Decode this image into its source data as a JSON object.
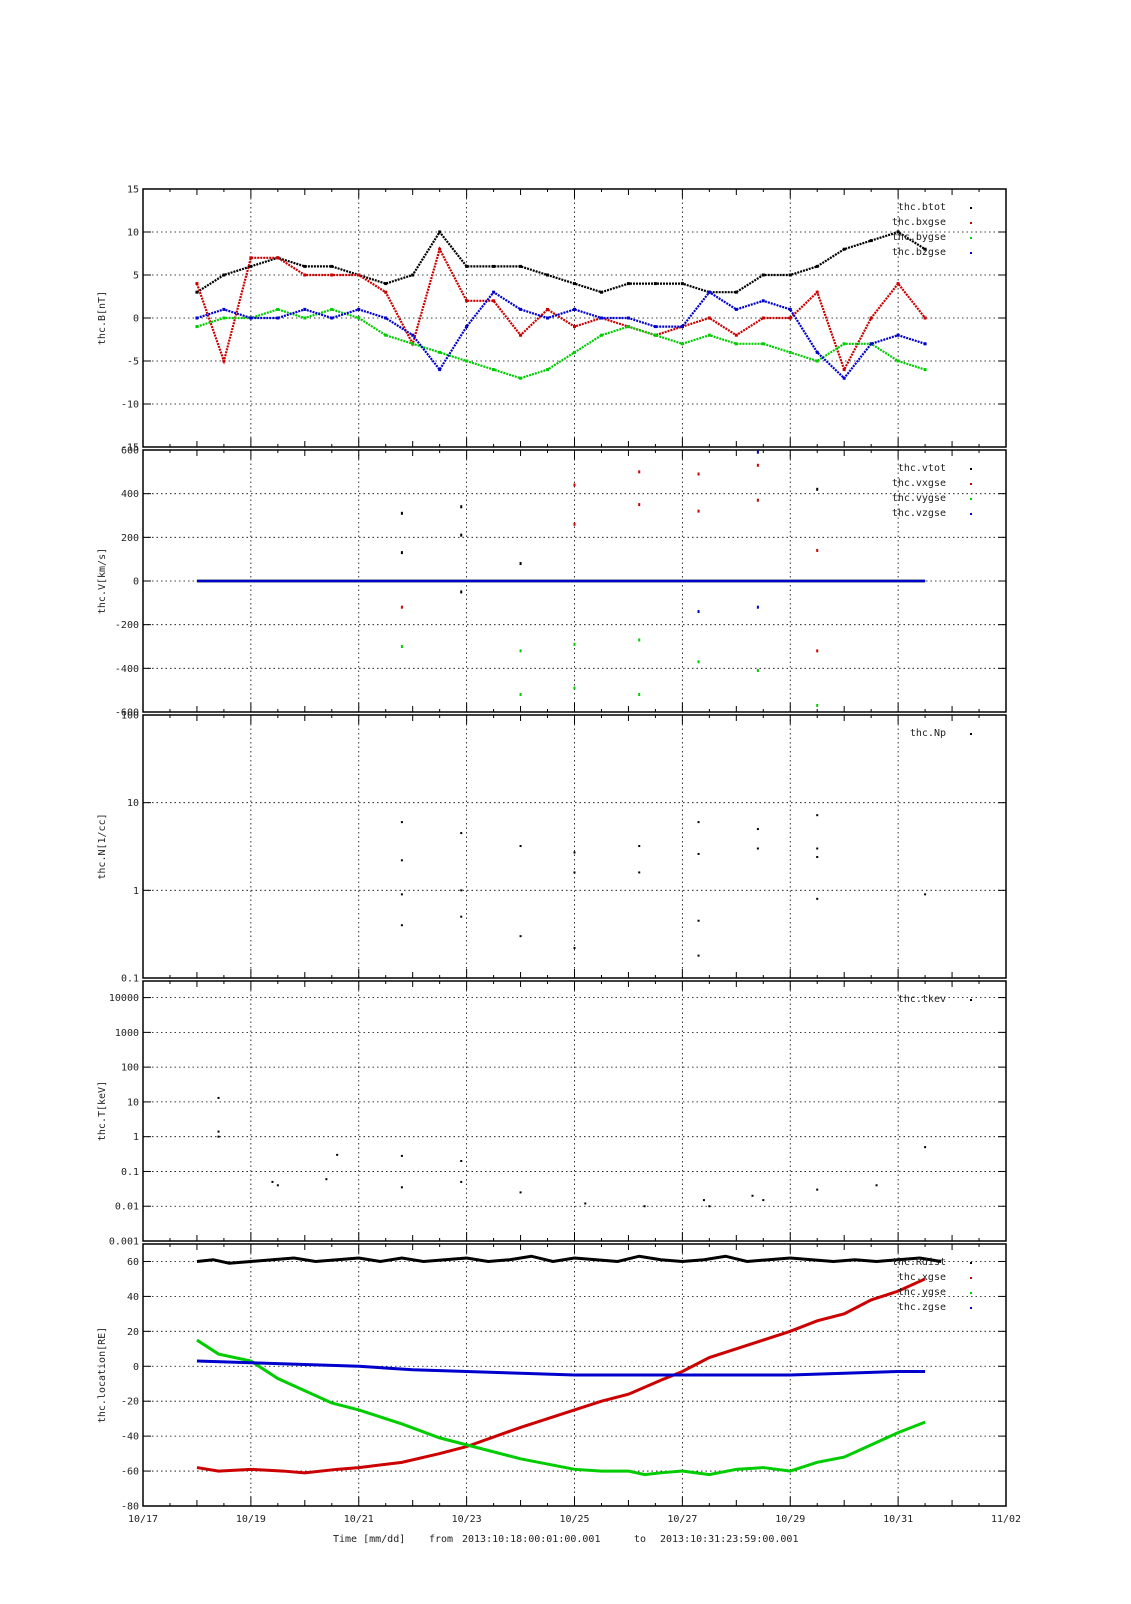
{
  "title": "",
  "x_axis": {
    "label_prefix": "Time [mm/dd]",
    "from_label": "from",
    "from_value": "2013:10:18:00:01:00.001",
    "to_label": "to",
    "to_value": "2013:10:31:23:59:00.001",
    "tick_labels": [
      "10/17",
      "10/19",
      "10/21",
      "10/23",
      "10/25",
      "10/27",
      "10/29",
      "10/31",
      "11/02"
    ]
  },
  "colors": {
    "black": "#000000",
    "red": "#cc0000",
    "green": "#00cc00",
    "blue": "#0000cc"
  },
  "chart_data": [
    {
      "type": "scatter",
      "ylabel": "thc.B[nT]",
      "ylim": [
        -15,
        15
      ],
      "yticks": [
        -15,
        -10,
        -5,
        0,
        5,
        10,
        15
      ],
      "ytick_labels": [
        "-15",
        "-10",
        "-5",
        "0",
        "5",
        "10",
        "15"
      ],
      "xlim": [
        0,
        16
      ],
      "grid": true,
      "legend": "top-right",
      "series": [
        {
          "name": "thc.btot",
          "color": "#000000",
          "x": [
            1.0,
            1.5,
            2.0,
            2.5,
            3.0,
            3.5,
            4.0,
            4.5,
            5.0,
            5.5,
            6.0,
            6.5,
            7.0,
            7.5,
            8.0,
            8.5,
            9.0,
            9.5,
            10.0,
            10.5,
            11.0,
            11.5,
            12.0,
            12.5,
            13.0,
            13.5,
            14.0,
            14.5
          ],
          "y": [
            3,
            5,
            6,
            7,
            6,
            6,
            5,
            4,
            5,
            10,
            6,
            6,
            6,
            5,
            4,
            3,
            4,
            4,
            4,
            3,
            3,
            5,
            5,
            6,
            8,
            9,
            10,
            8
          ]
        },
        {
          "name": "thc.bxgse",
          "color": "#cc0000",
          "x": [
            1.0,
            1.5,
            2.0,
            2.5,
            3.0,
            3.5,
            4.0,
            4.5,
            5.0,
            5.5,
            6.0,
            6.5,
            7.0,
            7.5,
            8.0,
            8.5,
            9.0,
            9.5,
            10.0,
            10.5,
            11.0,
            11.5,
            12.0,
            12.5,
            13.0,
            13.5,
            14.0,
            14.5
          ],
          "y": [
            4,
            -5,
            7,
            7,
            5,
            5,
            5,
            3,
            -3,
            8,
            2,
            2,
            -2,
            1,
            -1,
            0,
            -1,
            -2,
            -1,
            0,
            -2,
            0,
            0,
            3,
            -6,
            0,
            4,
            0
          ]
        },
        {
          "name": "thc.bygse",
          "color": "#00cc00",
          "x": [
            1.0,
            1.5,
            2.0,
            2.5,
            3.0,
            3.5,
            4.0,
            4.5,
            5.0,
            5.5,
            6.0,
            6.5,
            7.0,
            7.5,
            8.0,
            8.5,
            9.0,
            9.5,
            10.0,
            10.5,
            11.0,
            11.5,
            12.0,
            12.5,
            13.0,
            13.5,
            14.0,
            14.5
          ],
          "y": [
            -1,
            0,
            0,
            1,
            0,
            1,
            0,
            -2,
            -3,
            -4,
            -5,
            -6,
            -7,
            -6,
            -4,
            -2,
            -1,
            -2,
            -3,
            -2,
            -3,
            -3,
            -4,
            -5,
            -3,
            -3,
            -5,
            -6
          ]
        },
        {
          "name": "thc.bzgse",
          "color": "#0000cc",
          "x": [
            1.0,
            1.5,
            2.0,
            2.5,
            3.0,
            3.5,
            4.0,
            4.5,
            5.0,
            5.5,
            6.0,
            6.5,
            7.0,
            7.5,
            8.0,
            8.5,
            9.0,
            9.5,
            10.0,
            10.5,
            11.0,
            11.5,
            12.0,
            12.5,
            13.0,
            13.5,
            14.0,
            14.5
          ],
          "y": [
            0,
            1,
            0,
            0,
            1,
            0,
            1,
            0,
            -2,
            -6,
            -1,
            3,
            1,
            0,
            1,
            0,
            0,
            -1,
            -1,
            3,
            1,
            2,
            1,
            -4,
            -7,
            -3,
            -2,
            -3
          ]
        }
      ]
    },
    {
      "type": "scatter",
      "ylabel": "thc.V[km/s]",
      "ylim": [
        -600,
        600
      ],
      "yticks": [
        -600,
        -400,
        -200,
        0,
        200,
        400,
        600
      ],
      "ytick_labels": [
        "-600",
        "-400",
        "-200",
        "0",
        "200",
        "400",
        "600"
      ],
      "xlim": [
        0,
        16
      ],
      "grid": true,
      "legend": "top-right",
      "series": [
        {
          "name": "thc.vtot",
          "color": "#000000",
          "x": [
            1,
            2,
            3,
            4,
            5,
            6,
            7,
            8,
            9,
            10,
            11,
            12,
            13,
            14,
            14.5
          ],
          "y": [
            0,
            0,
            0,
            0,
            0,
            0,
            0,
            0,
            0,
            0,
            0,
            0,
            0,
            0,
            0
          ]
        },
        {
          "name": "thc.vxgse",
          "color": "#cc0000",
          "x": [
            1,
            2,
            3,
            4,
            5,
            6,
            7,
            8,
            9,
            10,
            11,
            12,
            13,
            14,
            14.5
          ],
          "y": [
            0,
            0,
            0,
            0,
            0,
            0,
            0,
            0,
            0,
            0,
            0,
            0,
            0,
            0,
            0
          ]
        },
        {
          "name": "thc.vygse",
          "color": "#00cc00",
          "x": [
            1,
            2,
            3,
            4,
            5,
            6,
            7,
            8,
            9,
            10,
            11,
            12,
            13,
            14,
            14.5
          ],
          "y": [
            0,
            0,
            0,
            0,
            0,
            0,
            0,
            0,
            0,
            0,
            0,
            0,
            0,
            0,
            0
          ]
        },
        {
          "name": "thc.vzgse",
          "color": "#0000cc",
          "x": [
            1,
            2,
            3,
            4,
            5,
            6,
            7,
            8,
            9,
            10,
            11,
            12,
            13,
            14,
            14.5
          ],
          "y": [
            0,
            0,
            0,
            0,
            0,
            0,
            0,
            0,
            0,
            0,
            0,
            0,
            0,
            0,
            0
          ]
        }
      ],
      "scatter_points": [
        {
          "x": 4.8,
          "y": 310,
          "color": "#000000"
        },
        {
          "x": 4.8,
          "y": 130,
          "color": "#000000"
        },
        {
          "x": 4.8,
          "y": -120,
          "color": "#cc0000"
        },
        {
          "x": 4.8,
          "y": -300,
          "color": "#00cc00"
        },
        {
          "x": 5.9,
          "y": 340,
          "color": "#000000"
        },
        {
          "x": 5.9,
          "y": 210,
          "color": "#000000"
        },
        {
          "x": 5.9,
          "y": -50,
          "color": "#000000"
        },
        {
          "x": 7.0,
          "y": 80,
          "color": "#000000"
        },
        {
          "x": 7.0,
          "y": -320,
          "color": "#00cc00"
        },
        {
          "x": 7.0,
          "y": -520,
          "color": "#00cc00"
        },
        {
          "x": 8.0,
          "y": 440,
          "color": "#cc0000"
        },
        {
          "x": 8.0,
          "y": 260,
          "color": "#cc0000"
        },
        {
          "x": 8.0,
          "y": -290,
          "color": "#00cc00"
        },
        {
          "x": 8.0,
          "y": -490,
          "color": "#00cc00"
        },
        {
          "x": 9.2,
          "y": 500,
          "color": "#cc0000"
        },
        {
          "x": 9.2,
          "y": 350,
          "color": "#cc0000"
        },
        {
          "x": 9.2,
          "y": -270,
          "color": "#00cc00"
        },
        {
          "x": 9.2,
          "y": -520,
          "color": "#00cc00"
        },
        {
          "x": 10.3,
          "y": 490,
          "color": "#cc0000"
        },
        {
          "x": 10.3,
          "y": 320,
          "color": "#cc0000"
        },
        {
          "x": 10.3,
          "y": -140,
          "color": "#0000cc"
        },
        {
          "x": 10.3,
          "y": -370,
          "color": "#00cc00"
        },
        {
          "x": 11.4,
          "y": 590,
          "color": "#0000cc"
        },
        {
          "x": 11.4,
          "y": 530,
          "color": "#cc0000"
        },
        {
          "x": 11.4,
          "y": 370,
          "color": "#cc0000"
        },
        {
          "x": 11.4,
          "y": -120,
          "color": "#0000cc"
        },
        {
          "x": 11.4,
          "y": -410,
          "color": "#00cc00"
        },
        {
          "x": 12.5,
          "y": 420,
          "color": "#000000"
        },
        {
          "x": 12.5,
          "y": 140,
          "color": "#cc0000"
        },
        {
          "x": 12.5,
          "y": -320,
          "color": "#cc0000"
        },
        {
          "x": 12.5,
          "y": -570,
          "color": "#00cc00"
        }
      ]
    },
    {
      "type": "scatter",
      "ylabel": "thc.N[1/cc]",
      "yscale": "log",
      "ylim": [
        0.1,
        100
      ],
      "yticks": [
        0.1,
        1,
        10,
        100
      ],
      "ytick_labels": [
        "0.1",
        "1",
        "10",
        "100"
      ],
      "xlim": [
        0,
        16
      ],
      "grid": true,
      "legend": "top-right",
      "series": [
        {
          "name": "thc.Np",
          "color": "#000000",
          "x": [
            4.8,
            4.8,
            4.8,
            4.8,
            5.9,
            5.9,
            5.9,
            7.0,
            7.0,
            8.0,
            8.0,
            8.0,
            9.2,
            9.2,
            10.3,
            10.3,
            10.3,
            10.3,
            11.4,
            11.4,
            12.5,
            12.5,
            12.5,
            12.5,
            14.5
          ],
          "y": [
            6,
            2.2,
            0.9,
            0.4,
            4.5,
            1.0,
            0.5,
            3.2,
            0.3,
            2.7,
            1.6,
            0.22,
            3.2,
            1.6,
            6.0,
            2.6,
            0.45,
            0.18,
            5.0,
            3.0,
            7.2,
            3.0,
            2.4,
            0.8,
            0.9
          ]
        }
      ]
    },
    {
      "type": "scatter",
      "ylabel": "thc.T[keV]",
      "yscale": "log",
      "ylim": [
        0.001,
        30000
      ],
      "yticks": [
        0.001,
        0.01,
        0.1,
        1,
        10,
        100,
        1000,
        10000
      ],
      "ytick_labels": [
        "0.001",
        "0.01",
        "0.1",
        "1",
        "10",
        "100",
        "1000",
        "10000"
      ],
      "xlim": [
        0,
        16
      ],
      "grid": true,
      "legend": "top-right",
      "series": [
        {
          "name": "thc.tkev",
          "color": "#000000",
          "x": [
            1.4,
            1.4,
            1.4,
            2.4,
            2.5,
            3.4,
            3.6,
            4.8,
            4.8,
            5.9,
            5.9,
            7.0,
            8.2,
            9.3,
            10.4,
            10.5,
            11.3,
            11.5,
            12.5,
            13.6,
            14.5
          ],
          "y": [
            13,
            1.4,
            1.0,
            0.05,
            0.04,
            0.06,
            0.3,
            0.28,
            0.035,
            0.2,
            0.05,
            0.025,
            0.012,
            0.01,
            0.015,
            0.01,
            0.02,
            0.015,
            0.03,
            0.04,
            0.5
          ]
        }
      ]
    },
    {
      "type": "line",
      "ylabel": "thc.location[RE]",
      "ylim": [
        -80,
        70
      ],
      "yticks": [
        -80,
        -60,
        -40,
        -20,
        0,
        20,
        40,
        60
      ],
      "ytick_labels": [
        "-80",
        "-60",
        "-40",
        "-20",
        "0",
        "20",
        "40",
        "60"
      ],
      "xlim": [
        0,
        16
      ],
      "grid": true,
      "legend": "top-right",
      "series": [
        {
          "name": "thc.Rdist",
          "color": "#000000",
          "x": [
            1.0,
            1.3,
            1.6,
            2.0,
            2.4,
            2.8,
            3.2,
            3.6,
            4.0,
            4.4,
            4.8,
            5.2,
            5.6,
            6.0,
            6.4,
            6.8,
            7.2,
            7.6,
            8.0,
            8.4,
            8.8,
            9.2,
            9.6,
            10.0,
            10.4,
            10.8,
            11.2,
            11.6,
            12.0,
            12.4,
            12.8,
            13.2,
            13.6,
            14.0,
            14.4,
            14.8
          ],
          "y": [
            60,
            61,
            59,
            60,
            61,
            62,
            60,
            61,
            62,
            60,
            62,
            60,
            61,
            62,
            60,
            61,
            63,
            60,
            62,
            61,
            60,
            63,
            61,
            60,
            61,
            63,
            60,
            61,
            62,
            61,
            60,
            61,
            60,
            61,
            62,
            60
          ]
        },
        {
          "name": "thc.xgse",
          "color": "#cc0000",
          "x": [
            1.0,
            1.4,
            2.0,
            2.6,
            3.0,
            3.6,
            4.0,
            4.8,
            5.5,
            6.0,
            7.0,
            8.0,
            8.5,
            9.0,
            9.3,
            9.6,
            10.0,
            10.5,
            11.0,
            11.5,
            12.0,
            12.5,
            13.0,
            13.5,
            14.0,
            14.5
          ],
          "y": [
            -58,
            -60,
            -59,
            -60,
            -61,
            -59,
            -58,
            -55,
            -50,
            -46,
            -35,
            -25,
            -20,
            -16,
            -12,
            -8,
            -3,
            5,
            10,
            15,
            20,
            26,
            30,
            38,
            43,
            50
          ]
        },
        {
          "name": "thc.ygse",
          "color": "#00cc00",
          "x": [
            1.0,
            1.4,
            2.0,
            2.5,
            3.0,
            3.5,
            4.0,
            4.8,
            5.5,
            6.0,
            7.0,
            8.0,
            8.5,
            9.0,
            9.3,
            9.6,
            10.0,
            10.5,
            11.0,
            11.5,
            12.0,
            12.5,
            13.0,
            13.5,
            14.0,
            14.5
          ],
          "y": [
            15,
            7,
            3,
            -7,
            -14,
            -21,
            -25,
            -33,
            -41,
            -45,
            -53,
            -59,
            -60,
            -60,
            -62,
            -61,
            -60,
            -62,
            -59,
            -58,
            -60,
            -55,
            -52,
            -45,
            -38,
            -32
          ]
        },
        {
          "name": "thc.zgse",
          "color": "#0000cc",
          "x": [
            1.0,
            2.0,
            3.0,
            4.0,
            5.0,
            6.0,
            7.0,
            8.0,
            9.0,
            10.0,
            11.0,
            12.0,
            13.0,
            14.0,
            14.5
          ],
          "y": [
            3,
            2,
            1,
            0,
            -2,
            -3,
            -4,
            -5,
            -5,
            -5,
            -5,
            -5,
            -4,
            -3,
            -3
          ]
        }
      ]
    }
  ]
}
